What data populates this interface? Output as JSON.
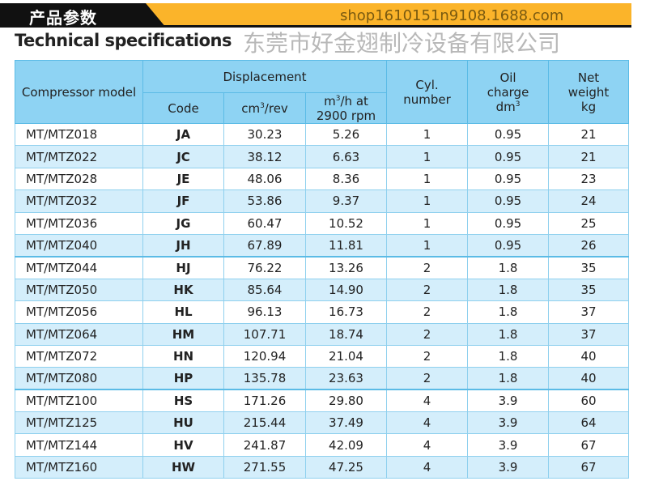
{
  "header": {
    "chinese_title": "产品参数",
    "title": "Technical specifications"
  },
  "table": {
    "col_model": "Compressor model",
    "col_displacement": "Displacement",
    "col_code": "Code",
    "col_cm3": "cm",
    "col_cm3_sup": "3",
    "col_cm3_tail": "/rev",
    "col_m3h": "m",
    "col_m3h_sup": "3",
    "col_m3h_tail": "/h at 2900 rpm",
    "col_cyl": "Cyl. number",
    "col_oil": "Oil charge dm",
    "col_oil_sup": "3",
    "col_weight": "Net weight kg",
    "rows": [
      [
        "MT/MTZ018",
        "JA",
        "30.23",
        "5.26",
        "1",
        "0.95",
        "21"
      ],
      [
        "MT/MTZ022",
        "JC",
        "38.12",
        "6.63",
        "1",
        "0.95",
        "21"
      ],
      [
        "MT/MTZ028",
        "JE",
        "48.06",
        "8.36",
        "1",
        "0.95",
        "23"
      ],
      [
        "MT/MTZ032",
        "JF",
        "53.86",
        "9.37",
        "1",
        "0.95",
        "24"
      ],
      [
        "MT/MTZ036",
        "JG",
        "60.47",
        "10.52",
        "1",
        "0.95",
        "25"
      ],
      [
        "MT/MTZ040",
        "JH",
        "67.89",
        "11.81",
        "1",
        "0.95",
        "26"
      ],
      [
        "MT/MTZ044",
        "HJ",
        "76.22",
        "13.26",
        "2",
        "1.8",
        "35"
      ],
      [
        "MT/MTZ050",
        "HK",
        "85.64",
        "14.90",
        "2",
        "1.8",
        "35"
      ],
      [
        "MT/MTZ056",
        "HL",
        "96.13",
        "16.73",
        "2",
        "1.8",
        "37"
      ],
      [
        "MT/MTZ064",
        "HM",
        "107.71",
        "18.74",
        "2",
        "1.8",
        "37"
      ],
      [
        "MT/MTZ072",
        "HN",
        "120.94",
        "21.04",
        "2",
        "1.8",
        "40"
      ],
      [
        "MT/MTZ080",
        "HP",
        "135.78",
        "23.63",
        "2",
        "1.8",
        "40"
      ],
      [
        "MT/MTZ100",
        "HS",
        "171.26",
        "29.80",
        "4",
        "3.9",
        "60"
      ],
      [
        "MT/MTZ125",
        "HU",
        "215.44",
        "37.49",
        "4",
        "3.9",
        "64"
      ],
      [
        "MT/MTZ144",
        "HV",
        "241.87",
        "42.09",
        "4",
        "3.9",
        "67"
      ],
      [
        "MT/MTZ160",
        "HW",
        "271.55",
        "47.25",
        "4",
        "3.9",
        "67"
      ]
    ]
  },
  "watermark": {
    "company": "东莞市好金翅制冷设备有限公司",
    "shop": "shop1610151n9108.1688.com"
  }
}
